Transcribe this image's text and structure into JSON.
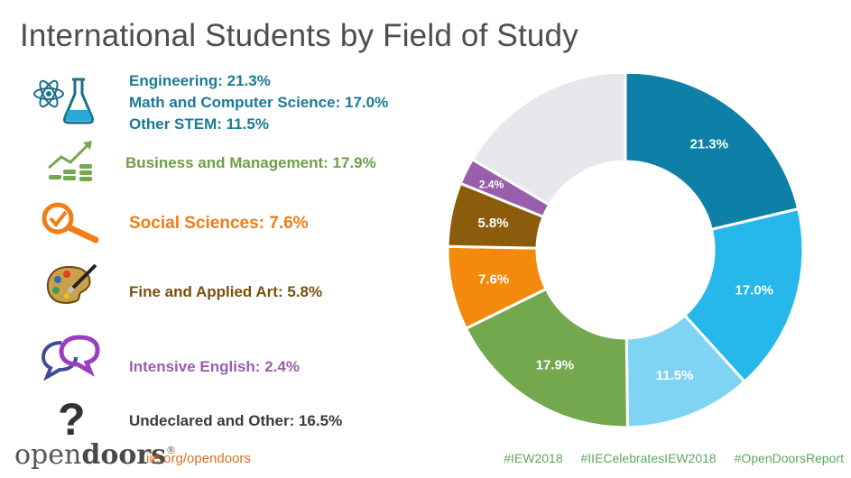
{
  "title": "International Students by Field of Study",
  "legend": {
    "stem": [
      "Engineering: 21.3%",
      "Math and Computer Science: 17.0%",
      "Other STEM: 11.5%"
    ],
    "business": "Business and Management: 17.9%",
    "social": "Social Sciences: 7.6%",
    "art": "Fine and Applied Art: 5.8%",
    "english": "Intensive English: 2.4%",
    "undeclared": "Undeclared and Other: 16.5%"
  },
  "footer": {
    "brand_open": "open",
    "brand_doors": "doors",
    "brand_mark": "®",
    "url": "iie.org/opendoors",
    "hashtags": [
      "#IEW2018",
      "#IIECelebratesIEW2018",
      "#OpenDoorsReport"
    ]
  },
  "colors": {
    "engineering": "#0e7fa6",
    "math": "#26b8ea",
    "other_stem": "#7fd4f4",
    "business": "#73a84e",
    "social": "#f48a0d",
    "art": "#8b5c0b",
    "english": "#9a5fac",
    "undeclared": "#e7e6eb",
    "title": "#4d4d4d",
    "stem_text": "#1a7a96",
    "business_text": "#6e9e46",
    "social_text": "#f07d16",
    "art_text": "#7a5008",
    "english_text": "#9a5fac",
    "undeclared_text": "#3a3a3a"
  },
  "chart_data": {
    "type": "pie",
    "donut": true,
    "title": "International Students by Field of Study",
    "categories": [
      "Engineering",
      "Math and Computer Science",
      "Other STEM",
      "Business and Management",
      "Social Sciences",
      "Fine and Applied Art",
      "Intensive English",
      "Undeclared and Other"
    ],
    "values": [
      21.3,
      17.0,
      11.5,
      17.9,
      7.6,
      5.8,
      2.4,
      16.5
    ],
    "data_labels": [
      "21.3%",
      "17.0%",
      "11.5%",
      "17.9%",
      "7.6%",
      "5.8%",
      "2.4%",
      ""
    ],
    "start": "12 o'clock, clockwise",
    "legend_position": "left"
  }
}
